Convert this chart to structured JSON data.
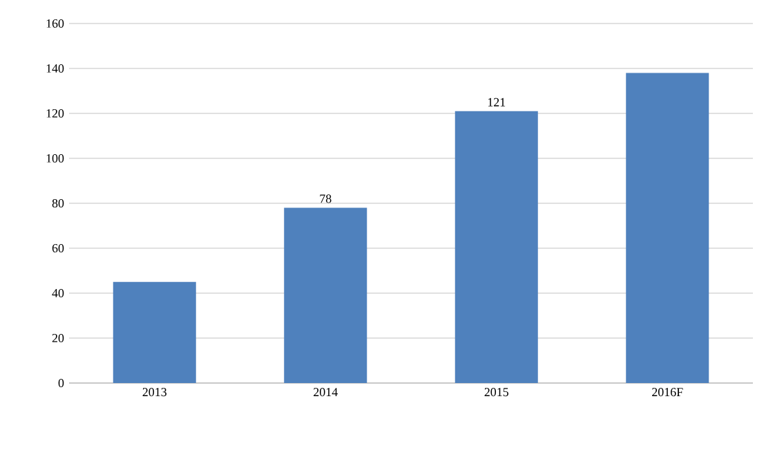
{
  "chart_data": {
    "type": "bar",
    "categories": [
      "2013",
      "2014",
      "2015",
      "2016F"
    ],
    "values": [
      45,
      78,
      121,
      138
    ],
    "value_labels": [
      null,
      "78",
      "121",
      null
    ],
    "color": "#4f81bd",
    "ylim": [
      0,
      160
    ],
    "yticks": [
      0,
      20,
      40,
      60,
      80,
      100,
      120,
      140,
      160
    ],
    "grid": "y"
  }
}
